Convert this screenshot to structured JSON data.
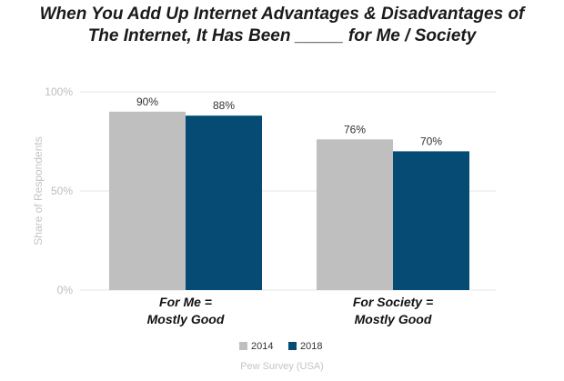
{
  "title_line1": "When You Add Up Internet Advantages & Disadvantages of",
  "title_line2": "The Internet, It Has Been _____ for Me / Society",
  "source": "Pew Survey (USA)",
  "colors": {
    "s2014": "#bfbfbf",
    "s2018": "#064b73",
    "grid": "#e6e6e6"
  },
  "chart_data": {
    "type": "bar",
    "title": "When You Add Up Internet Advantages & Disadvantages of The Internet, It Has Been _____ for Me / Society",
    "ylabel": "Share of Respondents",
    "xlabel": "",
    "ylim": [
      0,
      100
    ],
    "yticks": [
      "0%",
      "50%",
      "100%"
    ],
    "categories": [
      {
        "line1": "For Me =",
        "line2": "Mostly Good"
      },
      {
        "line1": "For Society =",
        "line2": "Mostly Good"
      }
    ],
    "series": [
      {
        "name": "2014",
        "values": [
          90,
          76
        ],
        "labels": [
          "90%",
          "76%"
        ]
      },
      {
        "name": "2018",
        "values": [
          88,
          70
        ],
        "labels": [
          "88%",
          "70%"
        ]
      }
    ],
    "legend": "bottom"
  }
}
